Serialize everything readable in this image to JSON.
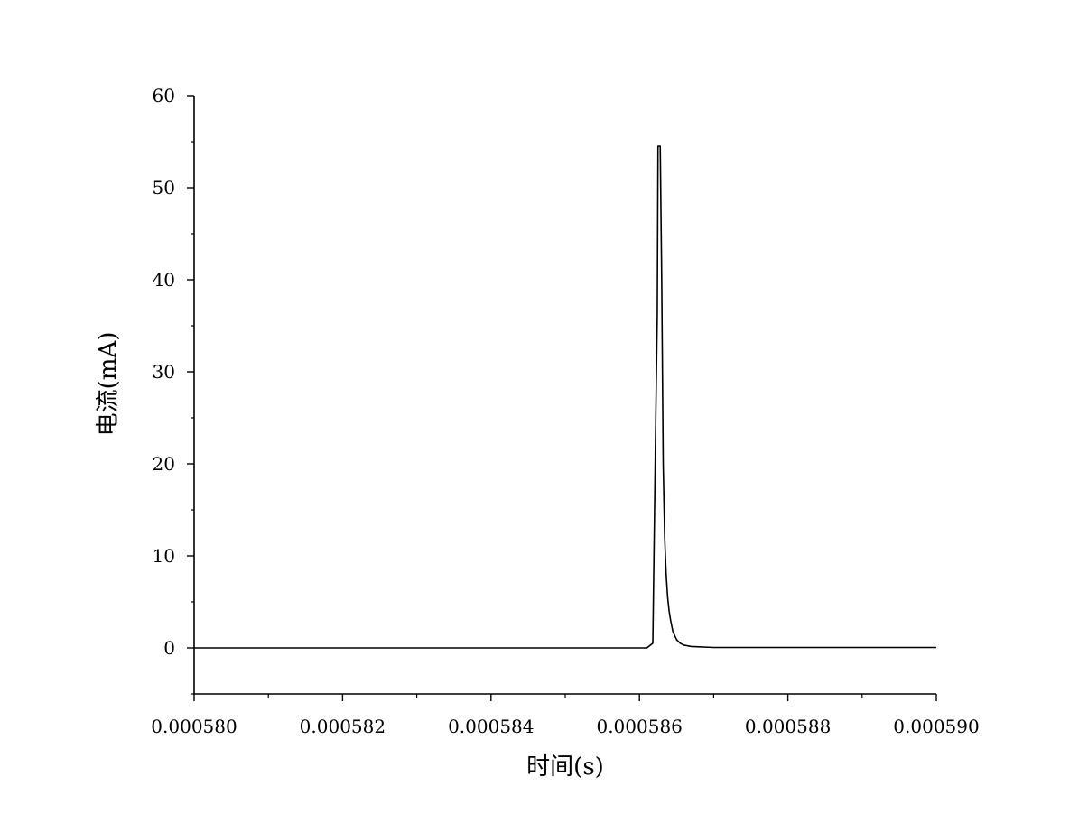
{
  "chart_data": {
    "type": "line",
    "title": "",
    "xlabel": "时间(s)",
    "ylabel": "电流(mA)",
    "xlim": [
      0.00058,
      0.00059
    ],
    "ylim": [
      -5,
      60
    ],
    "x_ticks": [
      0.00058,
      0.000582,
      0.000584,
      0.000586,
      0.000588,
      0.00059
    ],
    "x_tick_labels": [
      "0.000580",
      "0.000582",
      "0.000584",
      "0.000586",
      "0.000588",
      "0.000590"
    ],
    "y_ticks": [
      0,
      10,
      20,
      30,
      40,
      50,
      60
    ],
    "y_tick_labels": [
      "0",
      "10",
      "20",
      "30",
      "40",
      "50",
      "60"
    ],
    "grid": false,
    "legend": false,
    "line_color": "#000000",
    "series": [
      {
        "x": [
          0.00058,
          0.000582,
          0.000584,
          0.0005861,
          0.00058618,
          0.00058622,
          0.00058624,
          0.00058625,
          0.00058628,
          0.0005863,
          0.00058632,
          0.00058634,
          0.00058636,
          0.00058638,
          0.0005864,
          0.00058642,
          0.00058645,
          0.0005865,
          0.00058655,
          0.0005866,
          0.0005867,
          0.000587,
          0.000588,
          0.00059
        ],
        "y": [
          0,
          0,
          0,
          0,
          0.5,
          25,
          36,
          54.5,
          54.5,
          40,
          20,
          12,
          8,
          5.5,
          4,
          3,
          1.8,
          0.9,
          0.5,
          0.3,
          0.15,
          0.05,
          0.05,
          0.05
        ]
      }
    ]
  }
}
